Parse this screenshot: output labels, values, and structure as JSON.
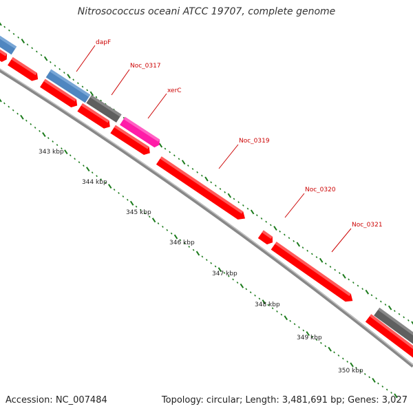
{
  "title": "Nitrosococcus oceani ATCC 19707, complete genome",
  "accession": "Accession: NC_007484",
  "summary": "Topology: circular; Length: 3,481,691 bp; Genes: 3,027",
  "colors": {
    "red_gene": "#ff0000",
    "blue_gene": "#4f86c0",
    "grey_gene": "#5f5f5f",
    "pink_gene": "#ff1ca8",
    "backbone": "#8a8a8a",
    "tick": "#1a7a1a",
    "label": "#cc0000"
  },
  "ruler": [
    {
      "label": "343 kbp"
    },
    {
      "label": "344 kbp"
    },
    {
      "label": "345 kbp"
    },
    {
      "label": "346 kbp"
    },
    {
      "label": "347 kbp"
    },
    {
      "label": "348 kbp"
    },
    {
      "label": "349 kbp"
    },
    {
      "label": "350 kbp"
    }
  ],
  "gene_labels": [
    {
      "name": "dapF"
    },
    {
      "name": "Noc_0317"
    },
    {
      "name": "xerC"
    },
    {
      "name": "Noc_0319"
    },
    {
      "name": "Noc_0320"
    },
    {
      "name": "Noc_0321"
    }
  ]
}
